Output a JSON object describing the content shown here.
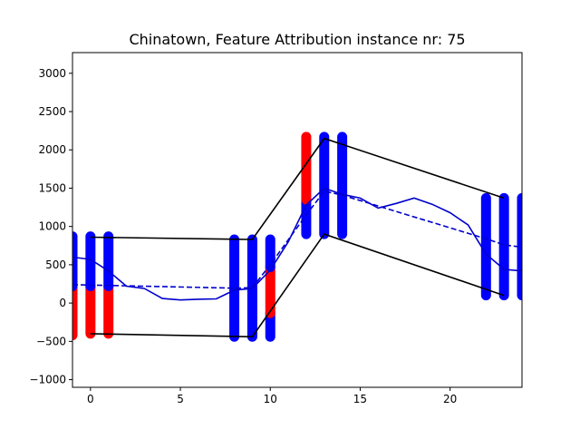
{
  "chart_data": {
    "type": "line",
    "title": "Chinatown, Feature Attribution instance nr: 75",
    "xlabel": "",
    "ylabel": "",
    "xlim": [
      -1,
      24
    ],
    "ylim": [
      -1100,
      3270
    ],
    "xticks": [
      0,
      5,
      10,
      15,
      20
    ],
    "yticks": [
      -1000,
      -500,
      0,
      500,
      1000,
      1500,
      2000,
      2500,
      3000
    ],
    "grid": false,
    "series": [
      {
        "style": "solid",
        "color": "#0000cc",
        "x": [
          -1,
          0,
          1,
          2,
          3,
          4,
          5,
          6,
          7,
          8,
          9,
          10,
          11,
          12,
          13,
          14,
          15,
          16,
          17,
          18,
          19,
          20,
          21,
          22,
          23,
          24
        ],
        "y": [
          600,
          570,
          420,
          220,
          190,
          60,
          40,
          50,
          55,
          170,
          190,
          430,
          800,
          1280,
          1500,
          1420,
          1370,
          1240,
          1300,
          1370,
          1290,
          1180,
          1020,
          640,
          440,
          420
        ]
      },
      {
        "style": "dashed",
        "color": "#0000cc",
        "x": [
          -1,
          0,
          1,
          8,
          9,
          10,
          12,
          13,
          14,
          22,
          23,
          24
        ],
        "y": [
          240,
          235,
          230,
          195,
          200,
          500,
          1150,
          1460,
          1410,
          840,
          760,
          730
        ]
      },
      {
        "style": "solid",
        "color": "#000000",
        "x": [
          0,
          9,
          13,
          23
        ],
        "y": [
          860,
          830,
          2150,
          1370
        ]
      },
      {
        "style": "solid",
        "color": "#000000",
        "x": [
          0,
          9,
          13,
          23
        ],
        "y": [
          -400,
          -440,
          900,
          100
        ]
      }
    ],
    "attribution_bars": [
      {
        "x": -1,
        "segments": [
          {
            "from": -420,
            "to": 220,
            "color": "#ff0000"
          },
          {
            "from": 220,
            "to": 870,
            "color": "#0000ff"
          }
        ]
      },
      {
        "x": 0,
        "segments": [
          {
            "from": -400,
            "to": 220,
            "color": "#ff0000"
          },
          {
            "from": 220,
            "to": 870,
            "color": "#0000ff"
          }
        ]
      },
      {
        "x": 1,
        "segments": [
          {
            "from": -400,
            "to": 220,
            "color": "#ff0000"
          },
          {
            "from": 220,
            "to": 870,
            "color": "#0000ff"
          }
        ]
      },
      {
        "x": 8,
        "segments": [
          {
            "from": -440,
            "to": 830,
            "color": "#0000ff"
          }
        ]
      },
      {
        "x": 9,
        "segments": [
          {
            "from": -440,
            "to": 830,
            "color": "#0000ff"
          }
        ]
      },
      {
        "x": 10,
        "segments": [
          {
            "from": -440,
            "to": -130,
            "color": "#0000ff"
          },
          {
            "from": -130,
            "to": 470,
            "color": "#ff0000"
          },
          {
            "from": 470,
            "to": 830,
            "color": "#0000ff"
          }
        ]
      },
      {
        "x": 12,
        "segments": [
          {
            "from": 900,
            "to": 1350,
            "color": "#0000ff"
          },
          {
            "from": 1350,
            "to": 2170,
            "color": "#ff0000"
          }
        ]
      },
      {
        "x": 13,
        "segments": [
          {
            "from": 900,
            "to": 2170,
            "color": "#0000ff"
          }
        ]
      },
      {
        "x": 14,
        "segments": [
          {
            "from": 900,
            "to": 2170,
            "color": "#0000ff"
          }
        ]
      },
      {
        "x": 22,
        "segments": [
          {
            "from": 100,
            "to": 1370,
            "color": "#0000ff"
          }
        ]
      },
      {
        "x": 23,
        "segments": [
          {
            "from": 100,
            "to": 1370,
            "color": "#0000ff"
          }
        ]
      },
      {
        "x": 24,
        "segments": [
          {
            "from": 100,
            "to": 1370,
            "color": "#0000ff"
          }
        ]
      }
    ]
  }
}
